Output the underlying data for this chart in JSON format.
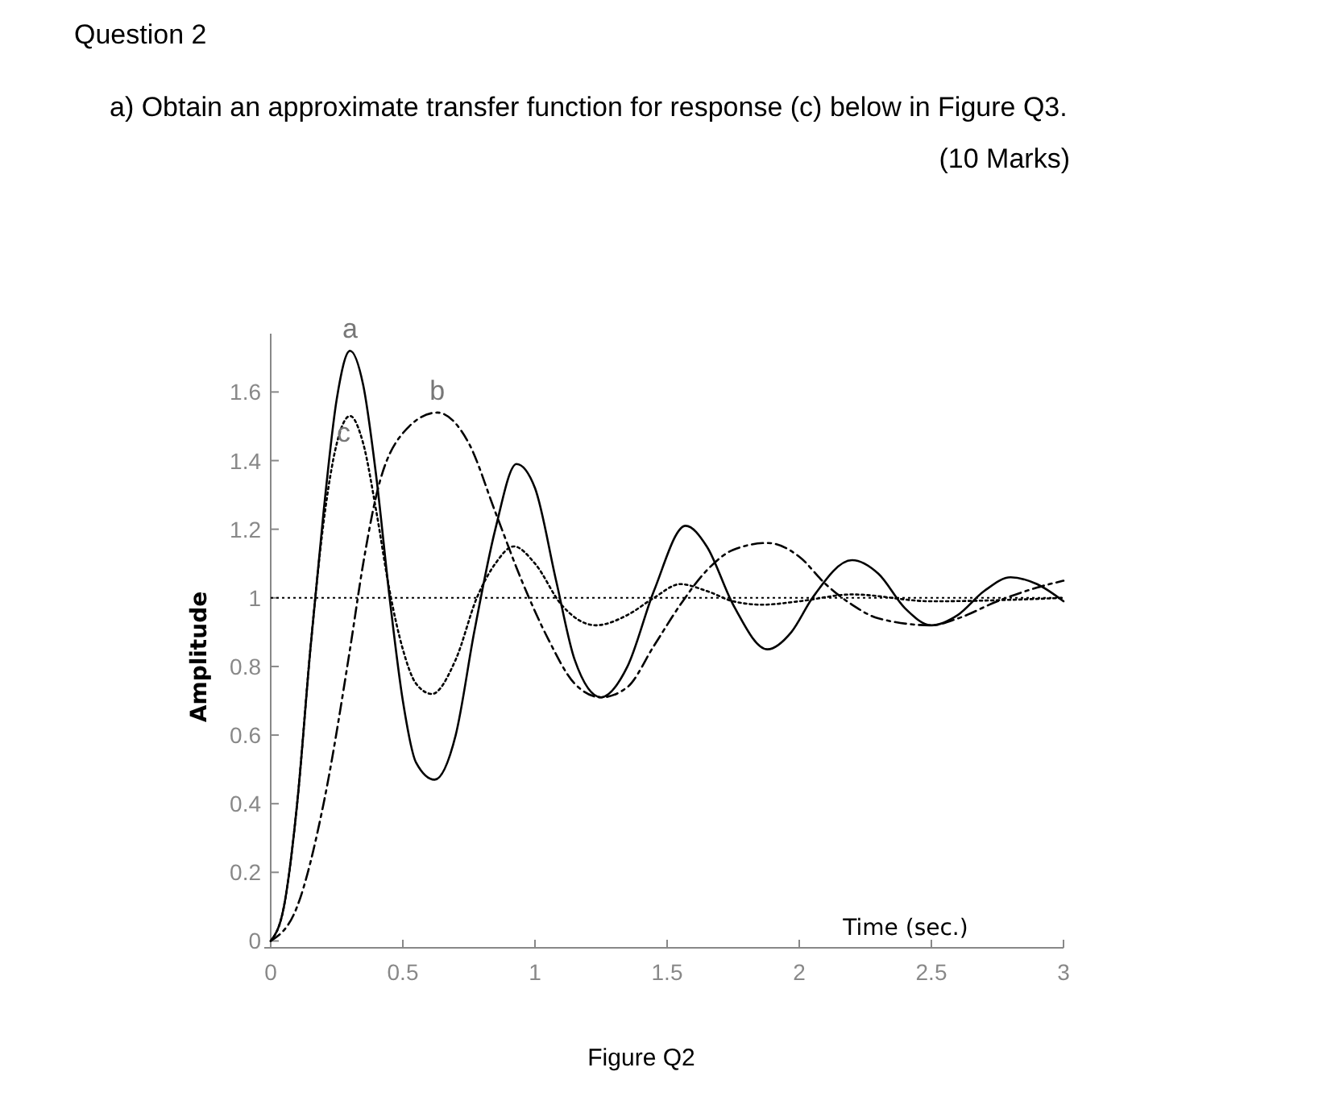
{
  "chart_data": {
    "type": "line",
    "title": "Question 2",
    "subtitle": "a) Obtain an approximate transfer function for response (c) below in Figure Q3.",
    "annotations": [
      "(10 Marks)",
      "Figure Q2"
    ],
    "xlabel": "Time (sec.)",
    "ylabel": "Amplitude",
    "xlim": [
      0,
      3
    ],
    "ylim": [
      -0.02,
      1.77
    ],
    "xticks": [
      0,
      0.5,
      1,
      1.5,
      2,
      2.5,
      3
    ],
    "yticks": [
      0,
      0.2,
      0.4,
      0.6,
      0.8,
      1,
      1.2,
      1.4,
      1.6
    ],
    "grid": false,
    "marker": "none",
    "ref_lines": [
      {
        "axis": "y",
        "value": 1,
        "color": "#000000",
        "line_style": "dotted"
      }
    ],
    "series": [
      {
        "name": "a",
        "color": "#000000",
        "line_style": "solid",
        "x": [
          0,
          0.05,
          0.1,
          0.15,
          0.2,
          0.25,
          0.3,
          0.35,
          0.4,
          0.45,
          0.5,
          0.55,
          0.62,
          0.7,
          0.77,
          0.85,
          0.93,
          1.0,
          1.08,
          1.15,
          1.25,
          1.35,
          1.45,
          1.57,
          1.65,
          1.75,
          1.88,
          1.97,
          2.05,
          2.2,
          2.3,
          2.4,
          2.5,
          2.6,
          2.7,
          2.8,
          2.9,
          3
        ],
        "values": [
          0,
          0.1,
          0.4,
          0.85,
          1.25,
          1.58,
          1.72,
          1.62,
          1.35,
          1.0,
          0.7,
          0.52,
          0.47,
          0.6,
          0.9,
          1.2,
          1.39,
          1.32,
          1.05,
          0.82,
          0.71,
          0.8,
          1.02,
          1.21,
          1.15,
          0.98,
          0.85,
          0.9,
          1.0,
          1.11,
          1.07,
          0.97,
          0.92,
          0.95,
          1.02,
          1.06,
          1.04,
          0.99
        ]
      },
      {
        "name": "b",
        "color": "#000000",
        "line_style": "dashed",
        "x": [
          0,
          0.1,
          0.2,
          0.3,
          0.35,
          0.4,
          0.5,
          0.63,
          0.75,
          0.85,
          0.95,
          1.05,
          1.15,
          1.25,
          1.35,
          1.45,
          1.55,
          1.65,
          1.75,
          1.88,
          2.0,
          2.1,
          2.2,
          2.3,
          2.5,
          2.6,
          2.75,
          2.9,
          3
        ],
        "values": [
          0,
          0.1,
          0.4,
          0.85,
          1.1,
          1.3,
          1.48,
          1.54,
          1.45,
          1.25,
          1.05,
          0.88,
          0.75,
          0.71,
          0.74,
          0.86,
          0.98,
          1.08,
          1.14,
          1.16,
          1.12,
          1.04,
          0.98,
          0.94,
          0.92,
          0.94,
          0.99,
          1.03,
          1.05
        ]
      },
      {
        "name": "c",
        "color": "#000000",
        "line_style": "dotted",
        "x": [
          0,
          0.05,
          0.1,
          0.15,
          0.2,
          0.25,
          0.3,
          0.35,
          0.4,
          0.45,
          0.5,
          0.55,
          0.61,
          0.7,
          0.78,
          0.85,
          0.92,
          1.0,
          1.1,
          1.23,
          1.35,
          1.45,
          1.55,
          1.65,
          1.75,
          1.86,
          2.0,
          2.2,
          2.5,
          3
        ],
        "values": [
          0,
          0.1,
          0.4,
          0.85,
          1.22,
          1.45,
          1.53,
          1.45,
          1.25,
          1.02,
          0.85,
          0.75,
          0.72,
          0.82,
          1.0,
          1.1,
          1.15,
          1.1,
          0.98,
          0.92,
          0.95,
          1.0,
          1.04,
          1.02,
          0.99,
          0.98,
          0.99,
          1.01,
          0.99,
          1.0
        ]
      }
    ]
  }
}
